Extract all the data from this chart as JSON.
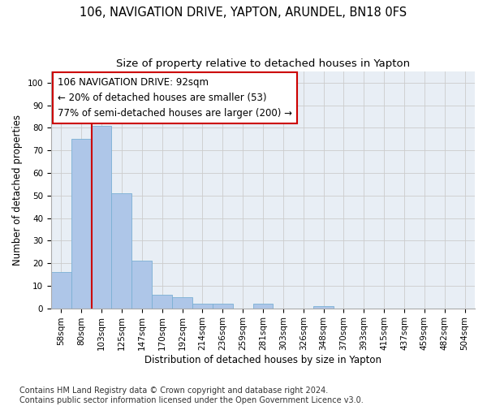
{
  "title_line1": "106, NAVIGATION DRIVE, YAPTON, ARUNDEL, BN18 0FS",
  "title_line2": "Size of property relative to detached houses in Yapton",
  "xlabel": "Distribution of detached houses by size in Yapton",
  "ylabel": "Number of detached properties",
  "bar_labels": [
    "58sqm",
    "80sqm",
    "103sqm",
    "125sqm",
    "147sqm",
    "170sqm",
    "192sqm",
    "214sqm",
    "236sqm",
    "259sqm",
    "281sqm",
    "303sqm",
    "326sqm",
    "348sqm",
    "370sqm",
    "393sqm",
    "415sqm",
    "437sqm",
    "459sqm",
    "482sqm",
    "504sqm"
  ],
  "bar_values": [
    16,
    75,
    81,
    51,
    21,
    6,
    5,
    2,
    2,
    0,
    2,
    0,
    0,
    1,
    0,
    0,
    0,
    0,
    0,
    0,
    0
  ],
  "bar_color": "#aec6e8",
  "bar_edge_color": "#7ab0d4",
  "vline_color": "#cc0000",
  "annotation_box_text": "106 NAVIGATION DRIVE: 92sqm\n← 20% of detached houses are smaller (53)\n77% of semi-detached houses are larger (200) →",
  "annotation_box_edge_color": "#cc0000",
  "annotation_box_face_color": "white",
  "ylim": [
    0,
    105
  ],
  "yticks": [
    0,
    10,
    20,
    30,
    40,
    50,
    60,
    70,
    80,
    90,
    100
  ],
  "grid_color": "#cccccc",
  "bg_color": "#e8eef5",
  "footnote": "Contains HM Land Registry data © Crown copyright and database right 2024.\nContains public sector information licensed under the Open Government Licence v3.0.",
  "title1_fontsize": 10.5,
  "title2_fontsize": 9.5,
  "axis_label_fontsize": 8.5,
  "tick_fontsize": 7.5,
  "annotation_fontsize": 8.5,
  "footnote_fontsize": 7
}
